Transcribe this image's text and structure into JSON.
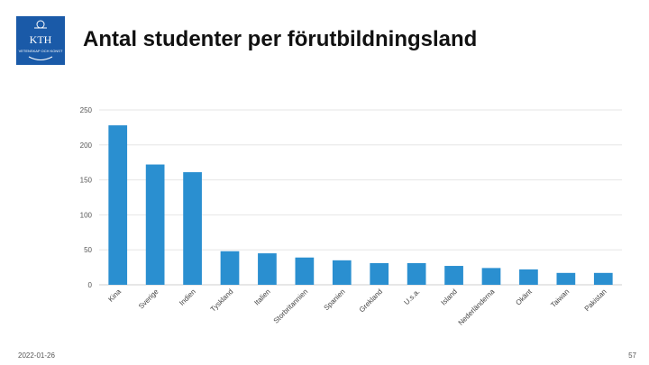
{
  "header": {
    "logo_text": "KTH",
    "logo_sub": "VETENSKAP OCH KONST",
    "title": "Antal studenter per förutbildningsland"
  },
  "footer": {
    "date": "2022-01-26",
    "page": "57"
  },
  "chart_data": {
    "type": "bar",
    "title": "",
    "xlabel": "",
    "ylabel": "",
    "ylim": [
      0,
      250
    ],
    "yticks": [
      0,
      50,
      100,
      150,
      200,
      250
    ],
    "grid": true,
    "legend": "none",
    "bar_color": "#2a8fd0",
    "categories": [
      "Kina",
      "Sverige",
      "Indien",
      "Tyskland",
      "Italien",
      "Storbritannien",
      "Spanien",
      "Grekland",
      "U.s.a.",
      "Island",
      "Nederländerna",
      "Okänt",
      "Taiwan",
      "Pakistan"
    ],
    "values": [
      228,
      172,
      161,
      48,
      45,
      39,
      35,
      31,
      31,
      27,
      24,
      22,
      17,
      17
    ]
  }
}
